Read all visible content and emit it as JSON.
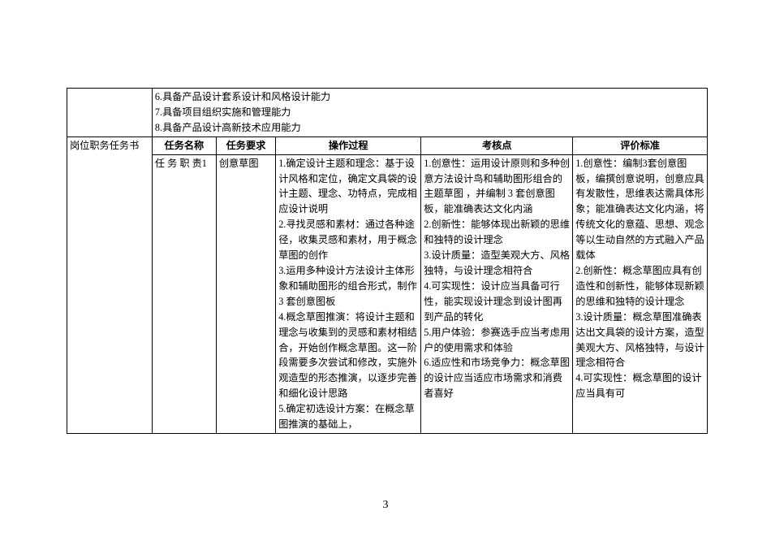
{
  "capabilities": {
    "line6": "6.具备产品设计套系设计和风格设计能力",
    "line7": "7.具备项目组织实施和管理能力",
    "line8": "8.具备产品设计高新技术应用能力"
  },
  "sectionLabel": "岗位职务任务书",
  "headers": {
    "col1": "任务名称",
    "col2": "任务要求",
    "col3": "操作过程",
    "col4": "考核点",
    "col5": "评价标准"
  },
  "row": {
    "taskName": "任 务 职 责1",
    "taskReq": "创意草图",
    "operation": "1.确定设计主题和理念：基于设计风格和定位，确定文具袋的设计主题、理念、功特点，完成相应设计说明\n2.寻找灵感和素材：通过各种途径，收集灵感和素材，用于概念草图的创作\n3.运用多种设计方法设计主体形象和辅助图形的组合形式，制作 3 套创意图板\n4.概念草图推演：将设计主题和理念与收集到的灵感和素材相结合，开始创作概念草图。这一阶段需要多次尝试和修改，实施外观造型的形态推演，以逐步完善和细化设计思路\n5.确定初选设计方案：在概念草图推演的基础上，",
    "checkpoint": "1.创意性：运用设计原则和多种创意方法设计鸟和辅助图形组合的主题草图 ，并编制 3 套创意图板，能准确表达文化内涵\n2.创新性：能够体现出新颖的思维和独特的设计理念\n3.设计质量：造型美观大方、风格独特，与设计理念相符合\n4.可实现性：设计应当具备可行性，能实现设计理念到设计图再到产品的转化\n5.用户体验：参赛选手应当考虑用户的使用需求和体验\n6.适应性和市场竞争力：概念草图的设计应当适应市场需求和消费者喜好",
    "criteria": "1.创意性：编制3套创意图板，编撰创意说明，创意应具有发散性，思维表达需具体形象；能准确表达文化内涵，将传统文化的意蕴、思想、观念等以生动自然的方式融入产品载体\n2.创新性：概念草图应具有创造性和创新性，能够体现新颖的思维和独特的设计理念\n3.设计质量：概念草图准确表达出文具袋的设计方案，造型美观大方、风格独特，与设计理念相符合\n4.可实现性：概念草图的设计应当具有可"
  },
  "pageNumber": "3",
  "colWidths": {
    "c0": "13.3%",
    "c1": "10.0%",
    "c2": "9.3%",
    "c3": "22.7%",
    "c4": "23.7%",
    "c5": "21.0%"
  }
}
